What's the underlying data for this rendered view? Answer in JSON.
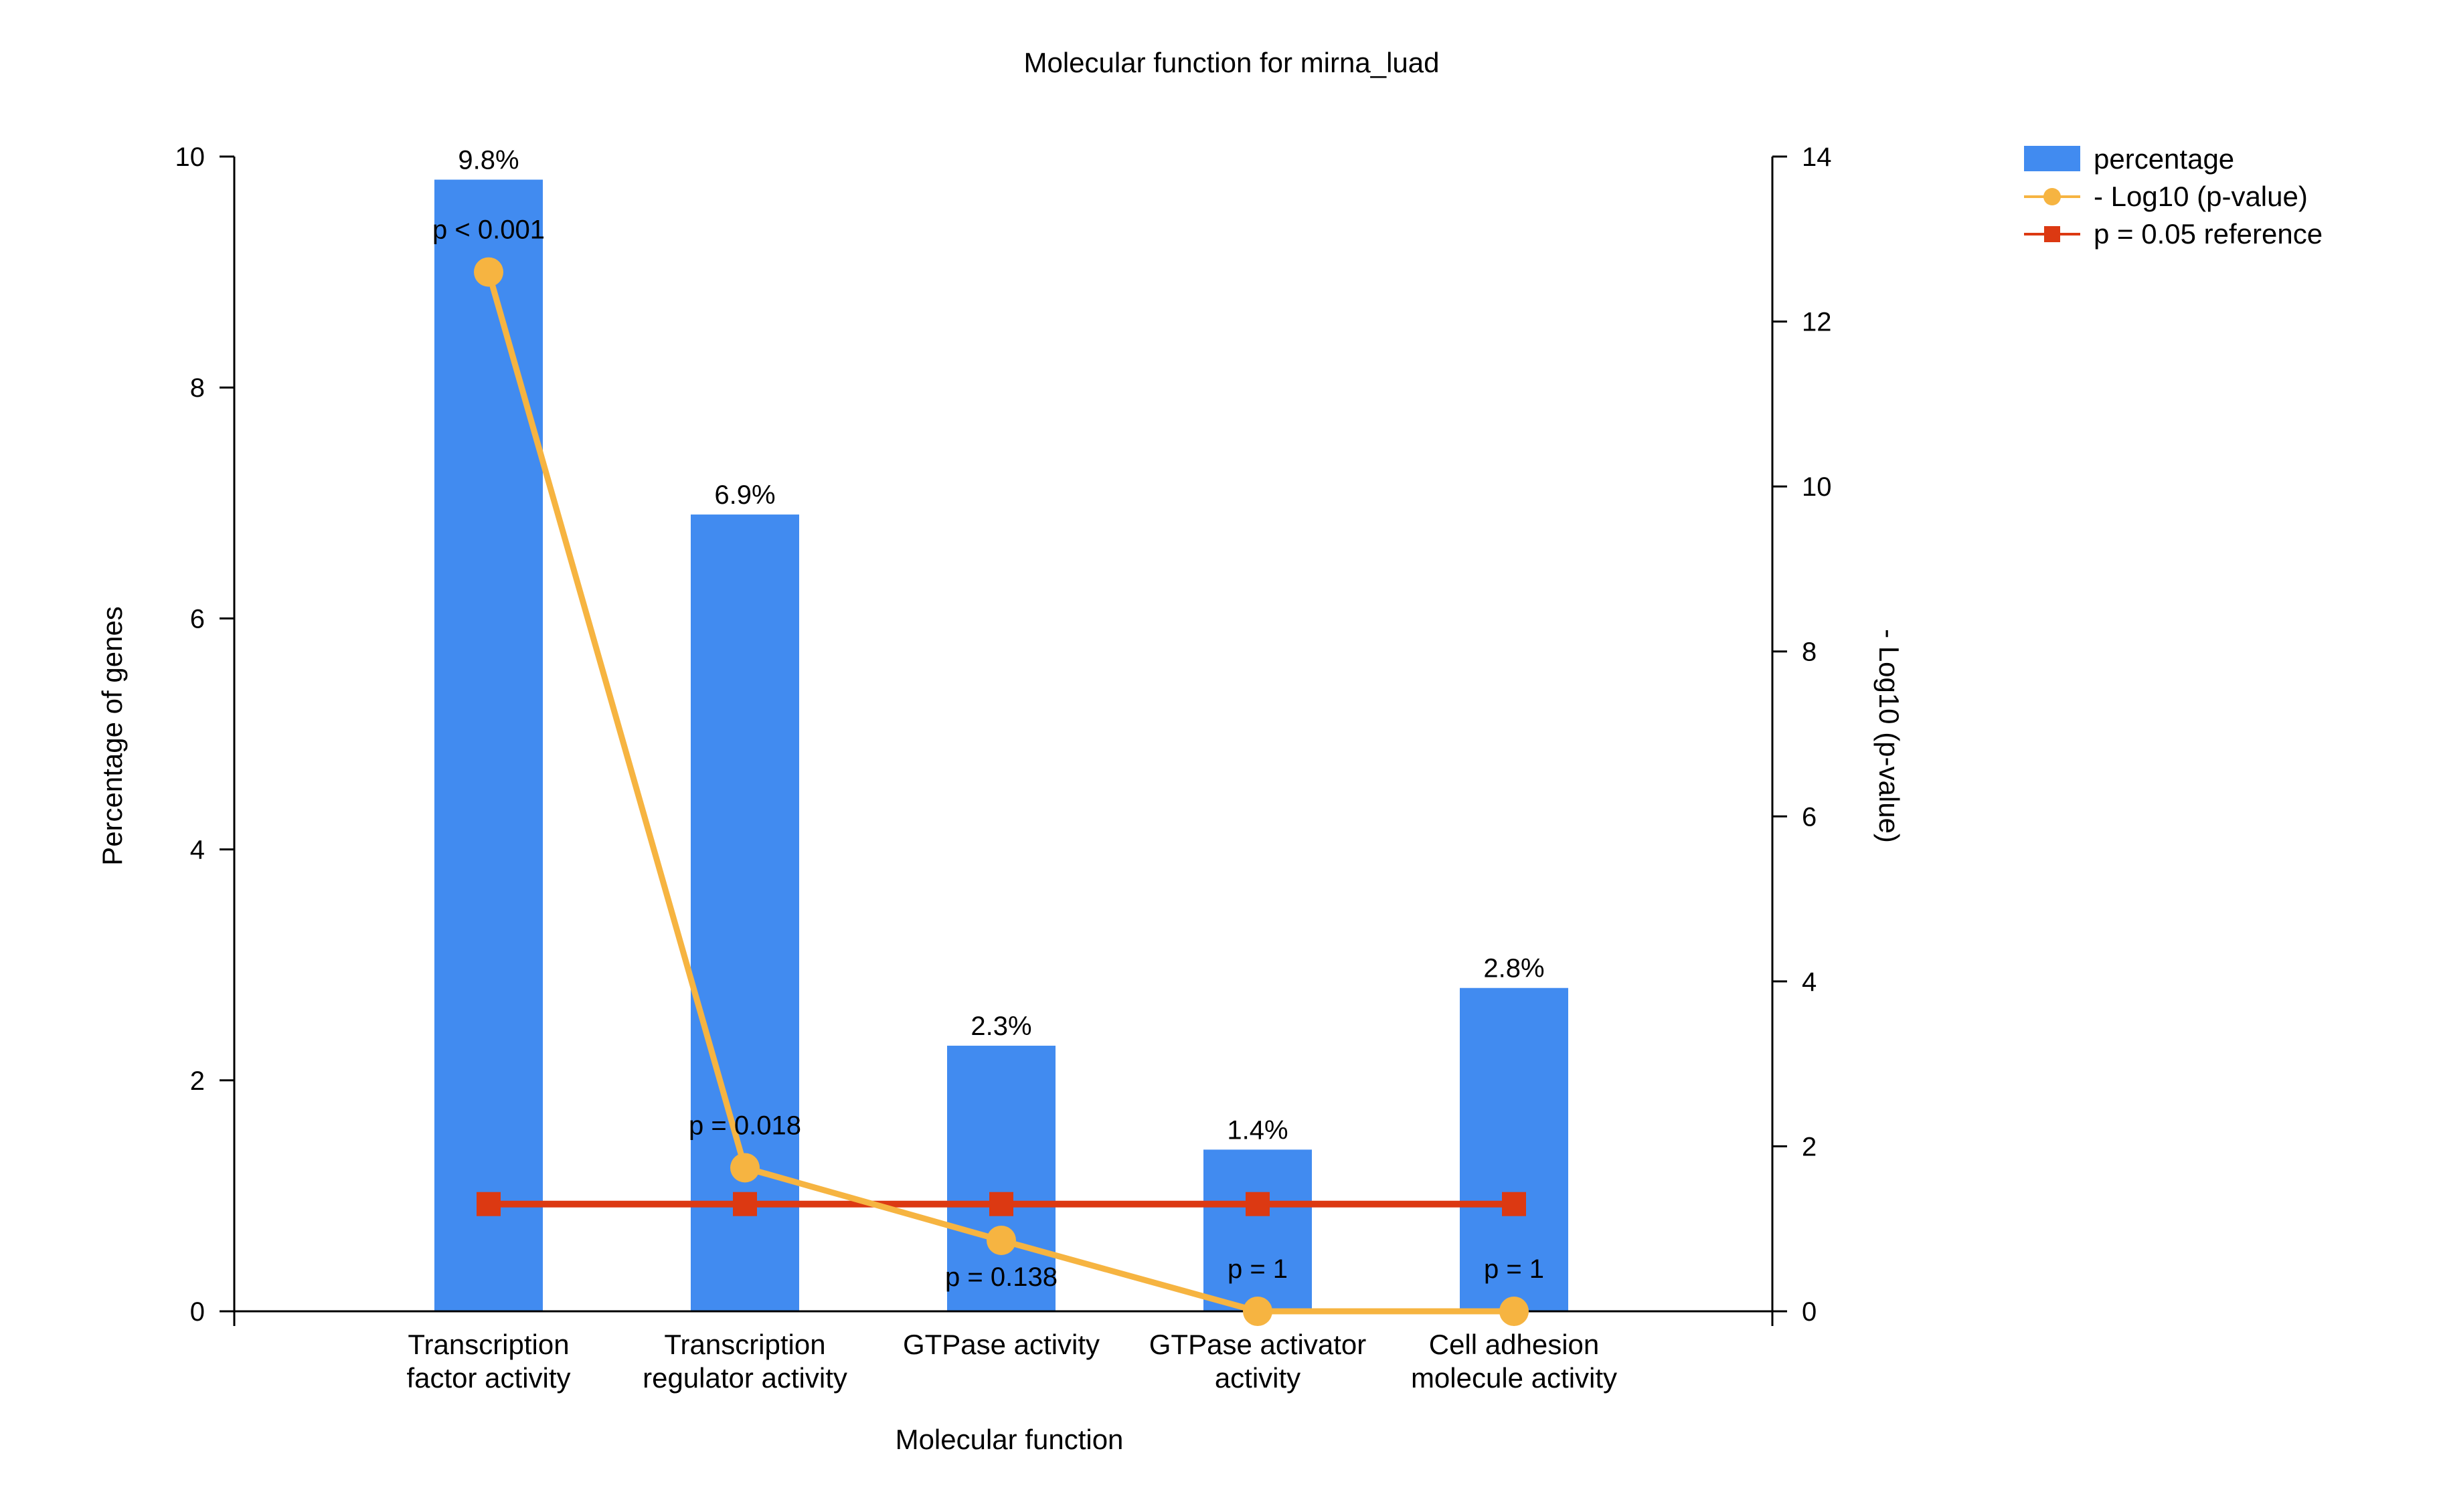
{
  "chart_data": {
    "type": "bar",
    "title": "Molecular function for mirna_luad",
    "xlabel": "Molecular function",
    "ylabel": "Percentage of genes",
    "y2label": "- Log10 (p-value)",
    "categories": [
      [
        "Transcription",
        "factor activity"
      ],
      [
        "Transcription",
        "regulator activity"
      ],
      [
        "GTPase activity"
      ],
      [
        "GTPase activator",
        "activity"
      ],
      [
        "Cell adhesion",
        "molecule activity"
      ]
    ],
    "ylim": [
      0,
      10
    ],
    "yticks": [
      "0",
      "2",
      "4",
      "6",
      "8",
      "10"
    ],
    "y2lim": [
      0,
      14
    ],
    "y2ticks": [
      "0",
      "2",
      "4",
      "6",
      "8",
      "10",
      "12",
      "14"
    ],
    "series": [
      {
        "name": "percentage",
        "kind": "bar",
        "axis": "left",
        "color": "#418bf0",
        "values": [
          9.8,
          6.9,
          2.3,
          1.4,
          2.8
        ],
        "labels": [
          "9.8%",
          "6.9%",
          "2.3%",
          "1.4%",
          "2.8%"
        ]
      },
      {
        "name": "- Log10 (p-value)",
        "kind": "line",
        "marker": "circle",
        "axis": "right",
        "color": "#f6b441",
        "values": [
          12.6,
          1.74,
          0.86,
          0,
          0
        ],
        "labels": [
          "p < 0.001",
          "p = 0.018",
          "p = 0.138",
          "p = 1",
          "p = 1"
        ],
        "label_position": [
          "above",
          "above",
          "below",
          "above",
          "above"
        ]
      },
      {
        "name": "p = 0.05 reference",
        "kind": "line",
        "marker": "square",
        "axis": "right",
        "color": "#dc3912",
        "values": [
          1.3,
          1.3,
          1.3,
          1.3,
          1.3
        ]
      }
    ],
    "legend_position": "top-right",
    "grid": false
  }
}
